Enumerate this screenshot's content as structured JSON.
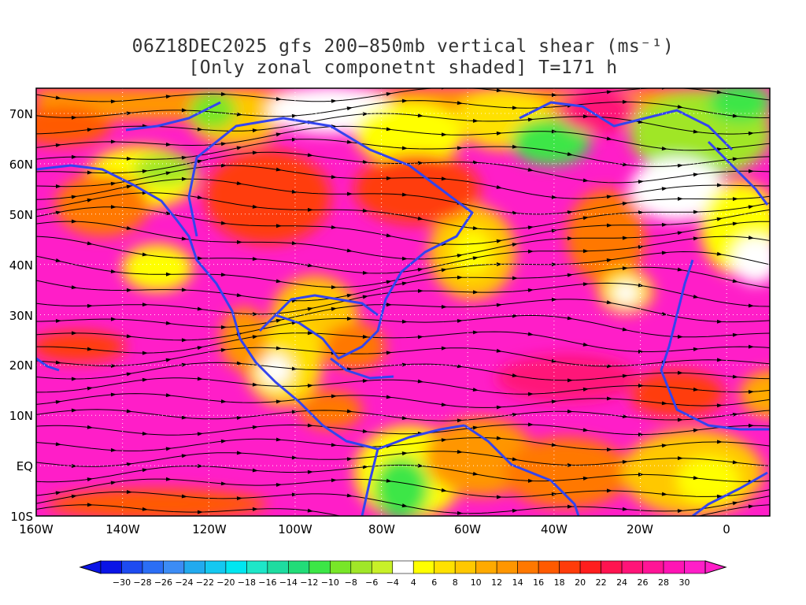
{
  "title": {
    "line1": "06Z18DEC2025 gfs 200−850mb vertical shear (ms⁻¹)",
    "line2": "[Only zonal componetnt shaded] T=171 h"
  },
  "map": {
    "lat_labels": [
      "70N",
      "60N",
      "50N",
      "40N",
      "30N",
      "20N",
      "10N",
      "EQ",
      "10S"
    ],
    "lon_labels": [
      "160W",
      "140W",
      "120W",
      "100W",
      "80W",
      "60W",
      "40W",
      "20W",
      "0"
    ],
    "lat_range": [
      -10,
      75
    ],
    "lon_range": [
      -160,
      10
    ],
    "grid": "dotted",
    "land_outline_color": "#3344ee",
    "streamline_color": "#000000"
  },
  "colorbar": {
    "labels": [
      "-30",
      "-28",
      "-26",
      "-24",
      "-22",
      "-20",
      "-18",
      "-16",
      "-14",
      "-12",
      "-10",
      "-8",
      "-6",
      "-4",
      "4",
      "6",
      "8",
      "10",
      "12",
      "14",
      "16",
      "18",
      "20",
      "22",
      "24",
      "26",
      "28",
      "30"
    ],
    "colors": [
      "#0a14e6",
      "#1e4bf0",
      "#2b6ef5",
      "#3c8cf5",
      "#22aaee",
      "#14c8f0",
      "#00e6f0",
      "#1ee6c8",
      "#1edca0",
      "#22dc78",
      "#3ce646",
      "#78e628",
      "#a0e628",
      "#c8f028",
      "#ffffff",
      "#ffff00",
      "#ffe100",
      "#ffc800",
      "#ffaa00",
      "#ff9600",
      "#ff7800",
      "#ff5a00",
      "#ff3c0a",
      "#ff1e1e",
      "#ff1450",
      "#ff1478",
      "#ff1496",
      "#ff14b4",
      "#ff1ec8"
    ]
  }
}
